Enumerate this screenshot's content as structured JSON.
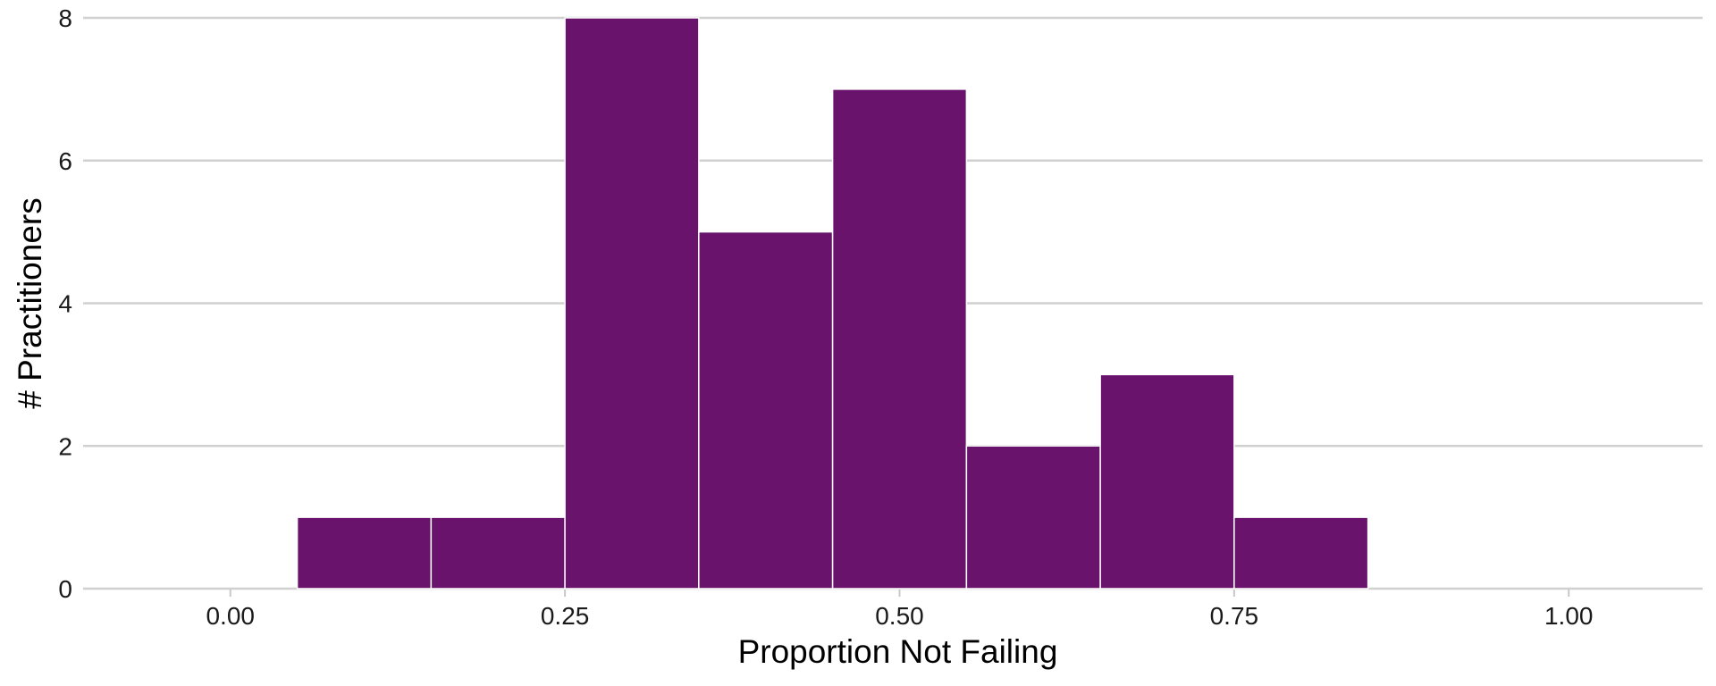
{
  "chart_data": {
    "type": "bar",
    "subtype": "histogram",
    "title": "",
    "xlabel": "Proportion Not Failing",
    "ylabel": "# Practitioners",
    "xlim": [
      -0.11,
      1.1
    ],
    "ylim": [
      0,
      8
    ],
    "xticks": [
      0,
      0.25,
      0.5,
      0.75,
      1
    ],
    "xtick_labels": [
      "0.00",
      "0.25",
      "0.50",
      "0.75",
      "1.00"
    ],
    "yticks": [
      0,
      2,
      4,
      6,
      8
    ],
    "ytick_labels": [
      "0",
      "2",
      "4",
      "6",
      "8"
    ],
    "bin_width": 0.1,
    "bins": [
      {
        "x0": 0.05,
        "x1": 0.15,
        "count": 1
      },
      {
        "x0": 0.15,
        "x1": 0.25,
        "count": 1
      },
      {
        "x0": 0.25,
        "x1": 0.35,
        "count": 8
      },
      {
        "x0": 0.35,
        "x1": 0.45,
        "count": 5
      },
      {
        "x0": 0.45,
        "x1": 0.55,
        "count": 7
      },
      {
        "x0": 0.55,
        "x1": 0.65,
        "count": 2
      },
      {
        "x0": 0.65,
        "x1": 0.75,
        "count": 3
      },
      {
        "x0": 0.75,
        "x1": 0.85,
        "count": 1
      }
    ],
    "bar_color": "#6a136c",
    "grid": "horizontal",
    "legend": "none"
  }
}
